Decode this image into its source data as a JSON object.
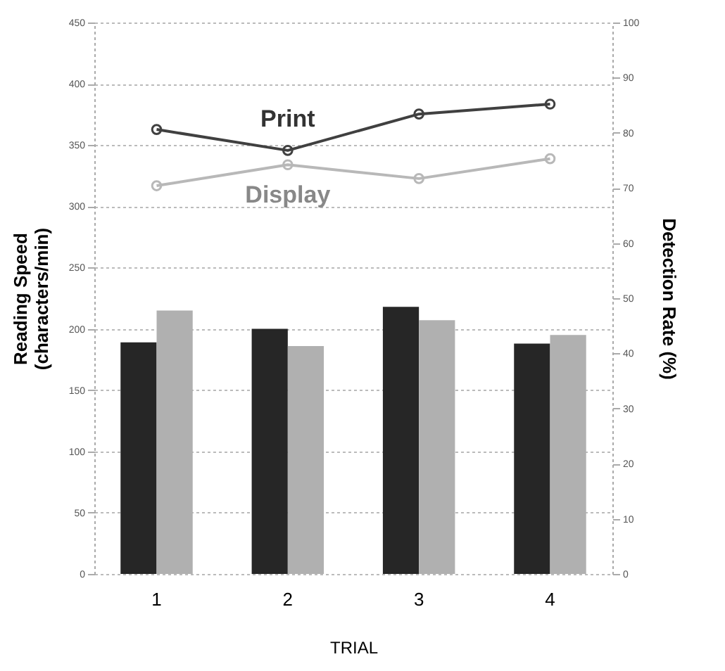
{
  "chart_data": {
    "type": "bar",
    "xlabel": "TRIAL",
    "ylabel": "Reading Speed (characters/min)",
    "y2label": "Detection Rate (%)",
    "categories": [
      "1",
      "2",
      "3",
      "4"
    ],
    "ylim": [
      0,
      450
    ],
    "yticks": [
      0,
      50,
      100,
      150,
      200,
      250,
      300,
      350,
      400,
      450
    ],
    "y2lim": [
      0,
      100
    ],
    "y2ticks": [
      0,
      10,
      20,
      30,
      40,
      50,
      60,
      70,
      80,
      90,
      100
    ],
    "grid": "y",
    "series": [
      {
        "color": "#262626",
        "values": [
          189,
          200,
          218,
          188
        ]
      },
      {
        "color": "#b0b0b0",
        "values": [
          215,
          186,
          207,
          195
        ]
      },
      {
        "type": "line",
        "axis": "y2",
        "name": "Print",
        "color": "#404040",
        "marker": "circle",
        "values": [
          80.6,
          76.8,
          83.4,
          85.2
        ]
      },
      {
        "type": "line",
        "axis": "y2",
        "name": "Display",
        "color": "#b8b8b8",
        "marker": "circle",
        "values": [
          70.4,
          74.2,
          71.7,
          75.3
        ]
      }
    ]
  }
}
